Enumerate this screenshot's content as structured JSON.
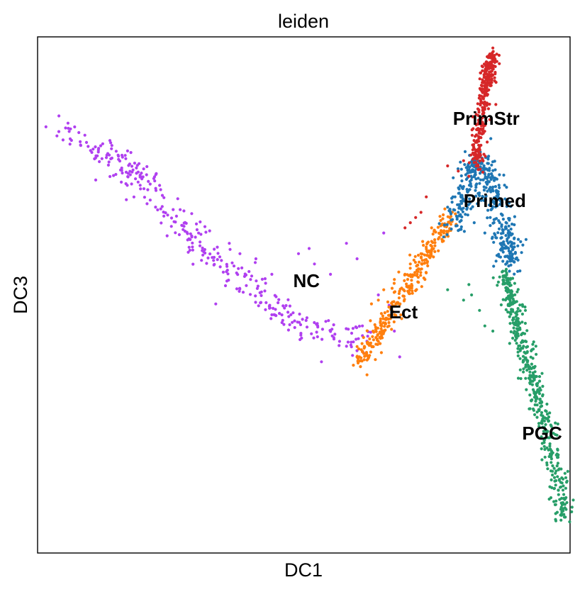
{
  "chart_data": {
    "type": "scatter",
    "title": "leiden",
    "xlabel": "DC1",
    "ylabel": "DC3",
    "xlim": [
      0,
      100
    ],
    "ylim": [
      0,
      100
    ],
    "xticks": [],
    "yticks": [],
    "grid": false,
    "legend": "on data",
    "series": [
      {
        "name": "NC",
        "color": "#b040f0",
        "label_pos": [
          48,
          51.5
        ],
        "path": [
          [
            4.5,
            82
          ],
          [
            13,
            77.5
          ],
          [
            20,
            72
          ],
          [
            27,
            64
          ],
          [
            34,
            56
          ],
          [
            42,
            49.5
          ],
          [
            50,
            43.7
          ],
          [
            61,
            41.2
          ]
        ],
        "spread": 1.5,
        "count": 340,
        "extra": [
          [
            49,
            58
          ],
          [
            51,
            59
          ],
          [
            52,
            56
          ],
          [
            55,
            54
          ],
          [
            58,
            60
          ],
          [
            60,
            57
          ],
          [
            64,
            50
          ],
          [
            66,
            48
          ],
          [
            65,
            62
          ],
          [
            67,
            43
          ],
          [
            68,
            38
          ],
          [
            61,
            44
          ],
          [
            62,
            42
          ],
          [
            38,
            58
          ],
          [
            36,
            60
          ],
          [
            44,
            54
          ],
          [
            41,
            57
          ],
          [
            40,
            53
          ]
        ]
      },
      {
        "name": "Ect",
        "color": "#ff7f0e",
        "label_pos": [
          66,
          45.5
        ],
        "path": [
          [
            60.5,
            37
          ],
          [
            63,
            41
          ],
          [
            66,
            46
          ],
          [
            69,
            51
          ],
          [
            72,
            56
          ],
          [
            75,
            61
          ],
          [
            78,
            65
          ]
        ],
        "spread": 0.9,
        "count": 320,
        "extra": [
          [
            62.5,
            45
          ],
          [
            64,
            49
          ],
          [
            65,
            51
          ],
          [
            67,
            53
          ],
          [
            69,
            54
          ],
          [
            70,
            56
          ],
          [
            72,
            58
          ],
          [
            74,
            63
          ],
          [
            61,
            39
          ],
          [
            60,
            40
          ],
          [
            63,
            43
          ],
          [
            64,
            41
          ],
          [
            66,
            44
          ]
        ]
      },
      {
        "name": "Primed",
        "color": "#1f77b4",
        "label_pos": [
          80,
          67
        ],
        "path": [
          [
            78,
            63
          ],
          [
            80,
            68
          ],
          [
            81.5,
            73
          ],
          [
            83,
            76.5
          ],
          [
            84.5,
            73
          ],
          [
            86,
            68
          ],
          [
            87.5,
            63
          ],
          [
            88.5,
            58.5
          ],
          [
            89,
            56
          ]
        ],
        "spread": 1.3,
        "count": 420,
        "extra": [
          [
            78,
            69
          ],
          [
            79,
            66
          ],
          [
            82,
            64
          ],
          [
            84,
            62
          ],
          [
            85,
            65
          ],
          [
            87,
            61
          ],
          [
            80,
            71
          ],
          [
            86,
            71
          ],
          [
            77,
            67
          ]
        ]
      },
      {
        "name": "PrimStr",
        "color": "#d62728",
        "label_pos": [
          78,
          83
        ],
        "path": [
          [
            82.5,
            74
          ],
          [
            82.8,
            80
          ],
          [
            83.5,
            86
          ],
          [
            84.3,
            91
          ],
          [
            84.8,
            94
          ],
          [
            85.5,
            96.5
          ]
        ],
        "spread": 0.65,
        "count": 300,
        "extra": [
          [
            77,
            75
          ],
          [
            79,
            74
          ],
          [
            80,
            76
          ],
          [
            81,
            73
          ],
          [
            73,
            69
          ],
          [
            71,
            65
          ],
          [
            72,
            66
          ],
          [
            70,
            64
          ],
          [
            69,
            63
          ]
        ]
      },
      {
        "name": "PGC",
        "color": "#279e68",
        "label_pos": [
          91,
          22
        ],
        "path": [
          [
            87.5,
            54
          ],
          [
            88.5,
            50.5
          ],
          [
            89.5,
            46
          ],
          [
            90.5,
            42
          ],
          [
            92,
            37
          ],
          [
            93.5,
            32
          ],
          [
            95,
            26
          ],
          [
            96.5,
            20
          ],
          [
            98,
            13
          ],
          [
            98.8,
            7
          ]
        ],
        "spread": 0.9,
        "count": 460,
        "extra": [
          [
            81,
            52
          ],
          [
            81.5,
            50
          ],
          [
            83,
            47
          ],
          [
            84,
            44
          ],
          [
            85.5,
            43
          ],
          [
            80,
            49
          ],
          [
            77,
            51
          ]
        ]
      }
    ]
  }
}
